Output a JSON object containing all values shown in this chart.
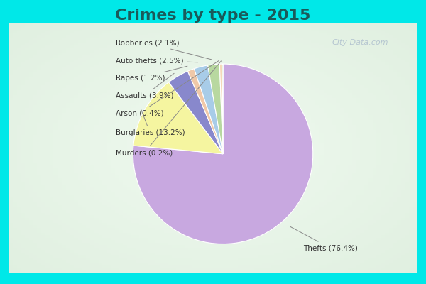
{
  "title": "Crimes by type - 2015",
  "title_fontsize": 16,
  "title_fontweight": "bold",
  "title_color": "#1a5a5a",
  "labels": [
    "Thefts",
    "Burglaries",
    "Assaults",
    "Rapes",
    "Auto thefts",
    "Robberies",
    "Arson",
    "Murders"
  ],
  "percentages": [
    76.4,
    13.2,
    3.9,
    1.2,
    2.5,
    2.1,
    0.4,
    0.2
  ],
  "colors": [
    "#c8a8e0",
    "#f5f5a0",
    "#8888cc",
    "#f0c8a8",
    "#a8cce8",
    "#b8d8a0",
    "#f5d8b8",
    "#d0e8c8"
  ],
  "label_texts": [
    "Thefts (76.4%)",
    "Burglaries (13.2%)",
    "Assaults (3.9%)",
    "Rapes (1.2%)",
    "Auto thefts (2.5%)",
    "Robberies (2.1%)",
    "Arson (0.4%)",
    "Murders (0.2%)"
  ],
  "border_color": "#00e8e8",
  "border_width": 8,
  "bg_color_center": "#e8f5e8",
  "bg_color_edge": "#c8e8d8",
  "figsize": [
    6.0,
    4.0
  ],
  "dpi": 100
}
